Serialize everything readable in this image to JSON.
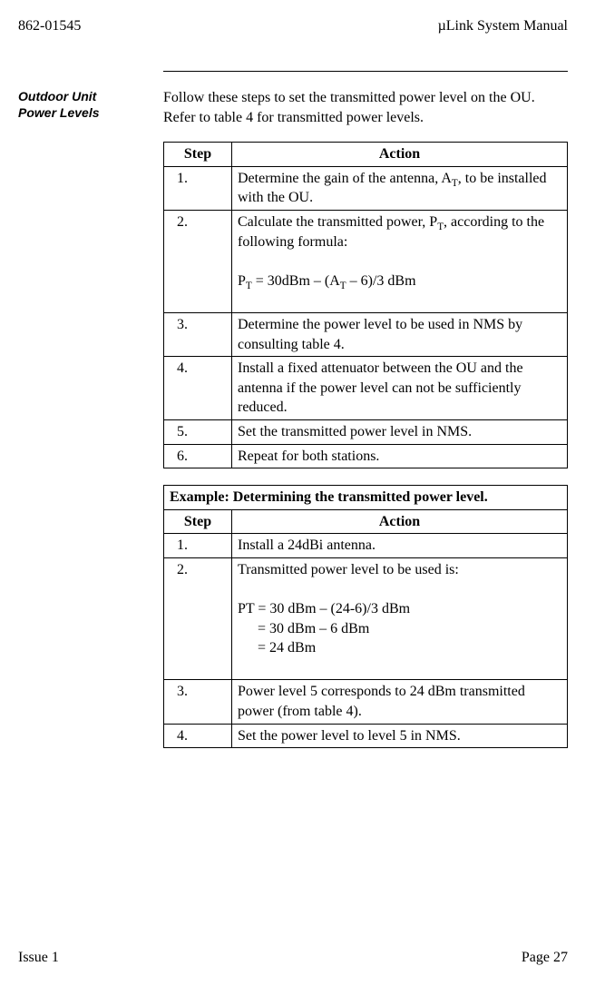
{
  "header": {
    "doc_number": "862-01545",
    "doc_title": "µLink System Manual"
  },
  "side_label": "Outdoor Unit\nPower Levels",
  "intro": "Follow these steps to set the transmitted power level on the OU.  Refer to table 4 for transmitted power levels.",
  "table1": {
    "col_step": "Step",
    "col_action": "Action",
    "rows": [
      {
        "n": "1.",
        "action": "Determine the gain of the antenna, A",
        "sub": "T",
        "action_tail": ", to be installed with the OU."
      },
      {
        "n": "2.",
        "line1_a": "Calculate the transmitted power, P",
        "line1_sub": "T",
        "line1_b": ", according to the following formula:",
        "eq_a": "P",
        "eq_sub1": "T",
        "eq_b": " = 30dBm – (A",
        "eq_sub2": "T",
        "eq_c": " – 6)/3 dBm"
      },
      {
        "n": "3.",
        "action": "Determine the power level to be used in NMS by consulting table 4."
      },
      {
        "n": "4.",
        "action": "Install a fixed attenuator between the OU and the antenna if the power level can not be sufficiently reduced."
      },
      {
        "n": "5.",
        "action": "Set the transmitted power level in NMS."
      },
      {
        "n": "6.",
        "action": "Repeat for both stations."
      }
    ]
  },
  "table2": {
    "title": "Example: Determining the transmitted power level.",
    "col_step": "Step",
    "col_action": "Action",
    "rows": [
      {
        "n": "1.",
        "action": "Install a 24dBi antenna."
      },
      {
        "n": "2.",
        "l1": "Transmitted power level to be used is:",
        "l2": "PT = 30 dBm – (24-6)/3 dBm",
        "l3": "= 30 dBm – 6 dBm",
        "l4": "= 24 dBm"
      },
      {
        "n": "3.",
        "action": "Power level 5 corresponds to 24 dBm transmitted power (from table 4)."
      },
      {
        "n": "4.",
        "action": "Set the power level to level 5 in NMS."
      }
    ]
  },
  "footer": {
    "issue": "Issue 1",
    "page": "Page 27"
  }
}
